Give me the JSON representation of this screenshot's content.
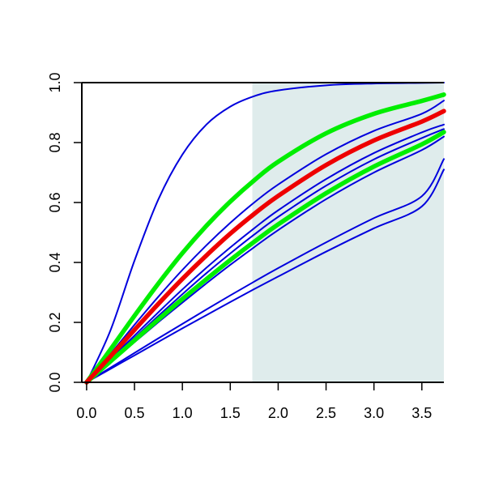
{
  "chart_data": {
    "type": "line",
    "title": "",
    "xlabel": "",
    "ylabel": "",
    "xlim": [
      -0.05,
      3.73
    ],
    "ylim": [
      0,
      1
    ],
    "x_ticks": [
      0,
      0.5,
      1,
      1.5,
      2,
      2.5,
      3,
      3.5
    ],
    "x_tick_labels": [
      "0.0",
      "0.5",
      "1.0",
      "1.5",
      "2.0",
      "2.5",
      "3.0",
      "3.5"
    ],
    "y_ticks": [
      0,
      0.2,
      0.4,
      0.6,
      0.8,
      1
    ],
    "y_tick_labels": [
      "0.0",
      "0.2",
      "0.4",
      "0.6",
      "0.8",
      "1.0"
    ],
    "shaded_region": {
      "x_start": 1.73,
      "x_end": 3.73,
      "color": "#dfecec"
    },
    "grid": false,
    "legend": "none",
    "colors": {
      "blue": "#0000dd",
      "green": "#00ee00",
      "red": "#ee0000",
      "axis": "#000000"
    },
    "series": [
      {
        "color": "#0000dd",
        "values": [
          [
            0,
            0
          ],
          [
            0.25,
            0.174
          ],
          [
            0.5,
            0.406
          ],
          [
            0.75,
            0.611
          ],
          [
            1.0,
            0.76
          ],
          [
            1.25,
            0.86
          ],
          [
            1.5,
            0.92
          ],
          [
            1.75,
            0.955
          ],
          [
            2.0,
            0.974
          ],
          [
            2.5,
            0.991
          ],
          [
            3.0,
            0.997
          ],
          [
            3.5,
            0.999
          ],
          [
            3.73,
            1.0
          ]
        ]
      },
      {
        "color": "#00ee00",
        "values": [
          [
            0,
            0
          ],
          [
            0.25,
            0.11
          ],
          [
            0.5,
            0.222
          ],
          [
            0.75,
            0.33
          ],
          [
            1.0,
            0.431
          ],
          [
            1.25,
            0.522
          ],
          [
            1.5,
            0.603
          ],
          [
            1.75,
            0.674
          ],
          [
            2.0,
            0.736
          ],
          [
            2.5,
            0.831
          ],
          [
            3.0,
            0.896
          ],
          [
            3.5,
            0.939
          ],
          [
            3.73,
            0.96
          ]
        ]
      },
      {
        "color": "#0000dd",
        "values": [
          [
            0,
            0
          ],
          [
            0.25,
            0.095
          ],
          [
            0.5,
            0.192
          ],
          [
            0.75,
            0.286
          ],
          [
            1.0,
            0.375
          ],
          [
            1.25,
            0.457
          ],
          [
            1.5,
            0.532
          ],
          [
            1.75,
            0.6
          ],
          [
            2.0,
            0.66
          ],
          [
            2.5,
            0.761
          ],
          [
            3.0,
            0.839
          ],
          [
            3.5,
            0.896
          ],
          [
            3.73,
            0.94
          ]
        ]
      },
      {
        "color": "#ee0000",
        "values": [
          [
            0,
            0
          ],
          [
            0.25,
            0.087
          ],
          [
            0.5,
            0.175
          ],
          [
            0.75,
            0.262
          ],
          [
            1.0,
            0.345
          ],
          [
            1.25,
            0.423
          ],
          [
            1.5,
            0.496
          ],
          [
            1.75,
            0.562
          ],
          [
            2.0,
            0.622
          ],
          [
            2.5,
            0.725
          ],
          [
            3.0,
            0.807
          ],
          [
            3.5,
            0.87
          ],
          [
            3.73,
            0.905
          ]
        ]
      },
      {
        "color": "#0000dd",
        "values": [
          [
            0,
            0
          ],
          [
            0.25,
            0.078
          ],
          [
            0.5,
            0.156
          ],
          [
            0.75,
            0.234
          ],
          [
            1.0,
            0.31
          ],
          [
            1.25,
            0.382
          ],
          [
            1.5,
            0.45
          ],
          [
            1.75,
            0.514
          ],
          [
            2.0,
            0.574
          ],
          [
            2.5,
            0.678
          ],
          [
            3.0,
            0.765
          ],
          [
            3.5,
            0.834
          ],
          [
            3.73,
            0.86
          ]
        ]
      },
      {
        "color": "#0000dd",
        "values": [
          [
            0,
            0
          ],
          [
            0.25,
            0.074
          ],
          [
            0.5,
            0.148
          ],
          [
            0.75,
            0.222
          ],
          [
            1.0,
            0.294
          ],
          [
            1.25,
            0.364
          ],
          [
            1.5,
            0.43
          ],
          [
            1.75,
            0.493
          ],
          [
            2.0,
            0.552
          ],
          [
            2.5,
            0.656
          ],
          [
            3.0,
            0.744
          ],
          [
            3.5,
            0.815
          ],
          [
            3.73,
            0.845
          ]
        ]
      },
      {
        "color": "#00ee00",
        "values": [
          [
            0,
            0
          ],
          [
            0.25,
            0.07
          ],
          [
            0.5,
            0.14
          ],
          [
            0.75,
            0.21
          ],
          [
            1.0,
            0.278
          ],
          [
            1.25,
            0.344
          ],
          [
            1.5,
            0.408
          ],
          [
            1.75,
            0.469
          ],
          [
            2.0,
            0.527
          ],
          [
            2.5,
            0.631
          ],
          [
            3.0,
            0.72
          ],
          [
            3.5,
            0.794
          ],
          [
            3.73,
            0.835
          ]
        ]
      },
      {
        "color": "#0000dd",
        "values": [
          [
            0,
            0
          ],
          [
            0.25,
            0.067
          ],
          [
            0.5,
            0.134
          ],
          [
            0.75,
            0.201
          ],
          [
            1.0,
            0.266
          ],
          [
            1.25,
            0.33
          ],
          [
            1.5,
            0.392
          ],
          [
            1.75,
            0.451
          ],
          [
            2.0,
            0.508
          ],
          [
            2.5,
            0.611
          ],
          [
            3.0,
            0.7
          ],
          [
            3.5,
            0.775
          ],
          [
            3.73,
            0.82
          ]
        ]
      },
      {
        "color": "#0000dd",
        "values": [
          [
            0,
            0
          ],
          [
            0.25,
            0.049
          ],
          [
            0.5,
            0.098
          ],
          [
            0.75,
            0.147
          ],
          [
            1.0,
            0.195
          ],
          [
            1.25,
            0.243
          ],
          [
            1.5,
            0.29
          ],
          [
            1.75,
            0.336
          ],
          [
            2.0,
            0.381
          ],
          [
            2.5,
            0.467
          ],
          [
            3.0,
            0.548
          ],
          [
            3.5,
            0.621
          ],
          [
            3.73,
            0.745
          ]
        ]
      },
      {
        "color": "#0000dd",
        "values": [
          [
            0,
            0
          ],
          [
            0.25,
            0.045
          ],
          [
            0.5,
            0.09
          ],
          [
            0.75,
            0.135
          ],
          [
            1.0,
            0.18
          ],
          [
            1.25,
            0.224
          ],
          [
            1.5,
            0.268
          ],
          [
            1.75,
            0.311
          ],
          [
            2.0,
            0.353
          ],
          [
            2.5,
            0.436
          ],
          [
            3.0,
            0.514
          ],
          [
            3.5,
            0.587
          ],
          [
            3.73,
            0.71
          ]
        ]
      }
    ]
  }
}
